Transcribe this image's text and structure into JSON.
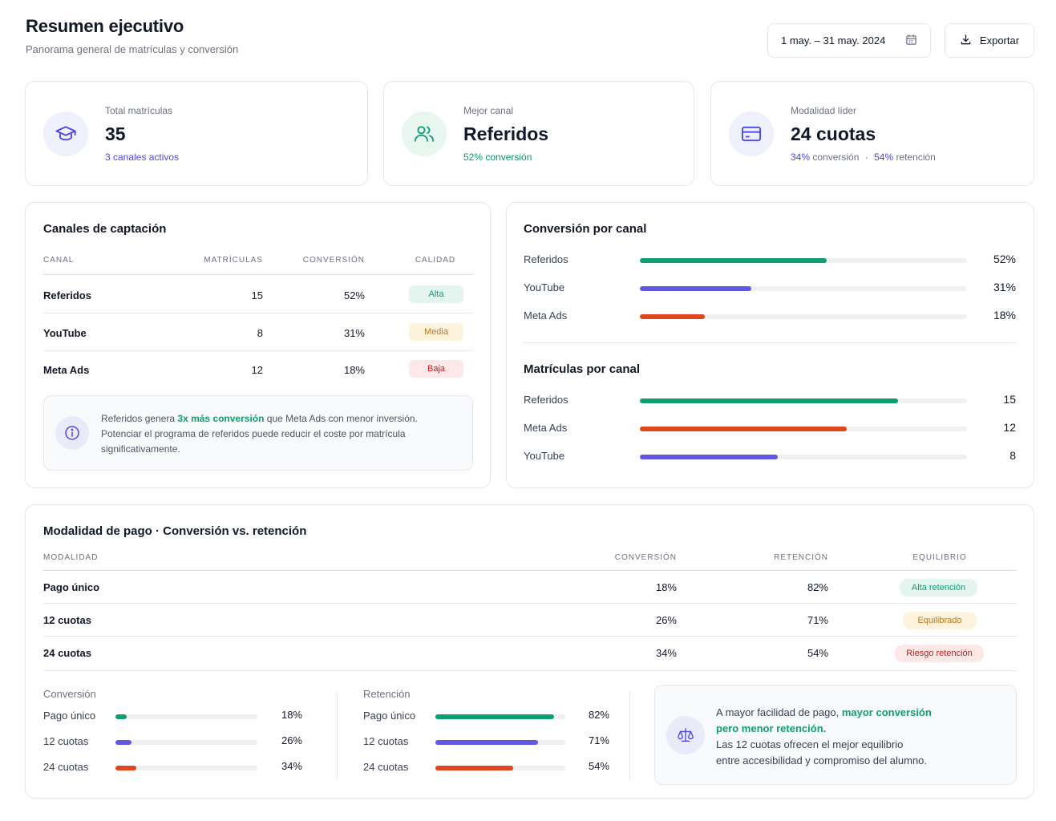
{
  "header": {
    "title": "Resumen ejecutivo",
    "subtitle": "Panorama general de matrículas y conversión",
    "date_range": "1 may. – 31 may. 2024",
    "export_label": "Exportar"
  },
  "kpis": [
    {
      "label": "Total matrículas",
      "value": "35",
      "sub": "3 canales activos",
      "icon": "graduation-cap-icon"
    },
    {
      "label": "Mejor canal",
      "value": "Referidos",
      "sub": "52% conversión",
      "icon": "users-icon"
    },
    {
      "label": "Modalidad líder",
      "value": "24 cuotas",
      "sub_a_value": "34%",
      "sub_a_text": "conversión",
      "sub_sep": "·",
      "sub_b_value": "54%",
      "sub_b_text": "retención",
      "icon": "credit-card-icon"
    }
  ],
  "channels": {
    "title": "Canales de captación",
    "headers": [
      "Canal",
      "Matrículas",
      "Conversión",
      "Calidad"
    ],
    "rows": [
      {
        "name": "Referidos",
        "enrollments": "15",
        "conversion": "52%",
        "quality": "Alta"
      },
      {
        "name": "YouTube",
        "enrollments": "8",
        "conversion": "31%",
        "quality": "Media"
      },
      {
        "name": "Meta Ads",
        "enrollments": "12",
        "conversion": "18%",
        "quality": "Baja"
      }
    ],
    "insight_pre": "Referidos genera ",
    "insight_highlight": "3x más conversión",
    "insight_post": " que Meta Ads con menor inversión.",
    "insight_line2": "Potenciar el programa de referidos puede reducir el coste por matrícula",
    "insight_line3": "significativamente."
  },
  "conversion_by_channel": {
    "title": "Conversión por canal",
    "items": [
      {
        "label": "Referidos",
        "value": 52,
        "display": "52%",
        "color": "#0e9f6e"
      },
      {
        "label": "YouTube",
        "value": 31,
        "display": "31%",
        "color": "#6058e0"
      },
      {
        "label": "Meta Ads",
        "value": 18,
        "display": "18%",
        "color": "#e0461e"
      }
    ]
  },
  "enrollments_by_channel": {
    "title": "Matrículas por canal",
    "max": 20,
    "items": [
      {
        "label": "Referidos",
        "value": 15,
        "display": "15",
        "color": "#0e9f6e"
      },
      {
        "label": "Meta Ads",
        "value": 12,
        "display": "12",
        "color": "#e0461e"
      },
      {
        "label": "YouTube",
        "value": 8,
        "display": "8",
        "color": "#6058e0"
      }
    ]
  },
  "payment": {
    "title": "Modalidad de pago · Conversión vs. retención",
    "headers": [
      "Modalidad",
      "Conversión",
      "Retención",
      "Equilibrio"
    ],
    "rows": [
      {
        "name": "Pago único",
        "conversion": "18%",
        "retention": "82%",
        "balance": "Alta retención"
      },
      {
        "name": "12 cuotas",
        "conversion": "26%",
        "retention": "71%",
        "balance": "Equilibrado"
      },
      {
        "name": "24 cuotas",
        "conversion": "34%",
        "retention": "54%",
        "balance": "Riesgo retención"
      }
    ],
    "conversion_title": "Conversión",
    "conversion_bars": [
      {
        "label": "Pago único",
        "value": 18,
        "display": "18%",
        "color": "#0e9f6e"
      },
      {
        "label": "12 cuotas",
        "value": 26,
        "display": "26%",
        "color": "#6058e0"
      },
      {
        "label": "24 cuotas",
        "value": 34,
        "display": "34%",
        "color": "#e0461e"
      }
    ],
    "retention_title": "Retención",
    "retention_bars": [
      {
        "label": "Pago único",
        "value": 82,
        "display": "82%",
        "color": "#0e9f6e"
      },
      {
        "label": "12 cuotas",
        "value": 71,
        "display": "71%",
        "color": "#6058e0"
      },
      {
        "label": "24 cuotas",
        "value": 54,
        "display": "54%",
        "color": "#e0461e"
      }
    ],
    "insight_pre": "A mayor facilidad de pago, ",
    "insight_highlight_1": "mayor conversión",
    "insight_highlight_2": "pero menor retención.",
    "insight_line3": "Las 12 cuotas ofrecen el mejor equilibrio",
    "insight_line4": "entre accesibilidad y compromiso del alumno."
  },
  "colors": {
    "green": "#0e9f6e",
    "indigo": "#6058e0",
    "red": "#e0461e"
  }
}
